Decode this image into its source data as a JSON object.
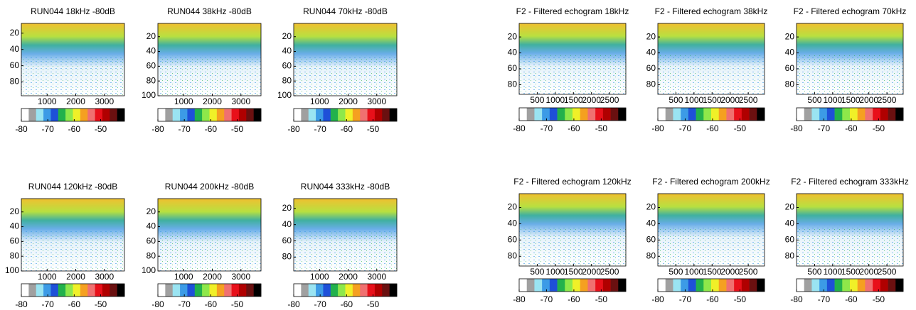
{
  "colormap": [
    "#ffffff",
    "#a0a0a0",
    "#9ae4f2",
    "#3c9be6",
    "#1e50d8",
    "#22b14c",
    "#8ee84a",
    "#f0f028",
    "#f5a020",
    "#f07070",
    "#e8101a",
    "#b00000",
    "#6a1010",
    "#000000"
  ],
  "chart_data": [
    {
      "type": "echogram",
      "title": "RUN044 18kHz -80dB",
      "xlim": [
        100,
        3700
      ],
      "xticks": [
        1000,
        2000,
        3000
      ],
      "ylim": [
        8,
        97
      ],
      "yticks": [
        20,
        40,
        60,
        80
      ],
      "y_inverted": true,
      "clim": [
        -80,
        -41
      ],
      "cticks": [
        -80,
        -70,
        -60,
        -50
      ]
    },
    {
      "type": "echogram",
      "title": "RUN044 38kHz -80dB",
      "xlim": [
        100,
        3700
      ],
      "xticks": [
        1000,
        2000,
        3000
      ],
      "ylim": [
        2,
        100
      ],
      "yticks": [
        20,
        40,
        60,
        80,
        100
      ],
      "y_inverted": true,
      "clim": [
        -80,
        -41
      ],
      "cticks": [
        -80,
        -70,
        -60,
        -50
      ]
    },
    {
      "type": "echogram",
      "title": "RUN044 70kHz -80dB",
      "xlim": [
        100,
        3700
      ],
      "xticks": [
        1000,
        2000,
        3000
      ],
      "ylim": [
        2,
        100
      ],
      "yticks": [
        20,
        40,
        60,
        80,
        100
      ],
      "y_inverted": true,
      "clim": [
        -80,
        -41
      ],
      "cticks": [
        -80,
        -70,
        -60,
        -50
      ]
    },
    {
      "type": "echogram",
      "title": "F2 - Filtered echogram 18kHz",
      "xlim": [
        0,
        2950
      ],
      "xticks": [
        500,
        1000,
        1500,
        2000,
        2500
      ],
      "ylim": [
        3,
        92
      ],
      "yticks": [
        20,
        40,
        60,
        80
      ],
      "y_inverted": true,
      "clim": [
        -80,
        -41
      ],
      "cticks": [
        -80,
        -70,
        -60,
        -50
      ]
    },
    {
      "type": "echogram",
      "title": "F2 - Filtered echogram 38kHz",
      "xlim": [
        0,
        2950
      ],
      "xticks": [
        500,
        1000,
        1500,
        2000,
        2500
      ],
      "ylim": [
        3,
        92
      ],
      "yticks": [
        20,
        40,
        60,
        80
      ],
      "y_inverted": true,
      "clim": [
        -80,
        -41
      ],
      "cticks": [
        -80,
        -70,
        -60,
        -50
      ]
    },
    {
      "type": "echogram",
      "title": "F2 - Filtered echogram 70kHz",
      "xlim": [
        0,
        2950
      ],
      "xticks": [
        500,
        1000,
        1500,
        2000,
        2500
      ],
      "ylim": [
        3,
        92
      ],
      "yticks": [
        20,
        40,
        60,
        80
      ],
      "y_inverted": true,
      "clim": [
        -80,
        -41
      ],
      "cticks": [
        -80,
        -70,
        -60,
        -50
      ]
    },
    {
      "type": "echogram",
      "title": "RUN044 120kHz -80dB",
      "xlim": [
        100,
        3700
      ],
      "xticks": [
        1000,
        2000,
        3000
      ],
      "ylim": [
        2,
        100
      ],
      "yticks": [
        20,
        40,
        60,
        80,
        100
      ],
      "y_inverted": true,
      "clim": [
        -80,
        -41
      ],
      "cticks": [
        -80,
        -70,
        -60,
        -50
      ]
    },
    {
      "type": "echogram",
      "title": "RUN044 200kHz -80dB",
      "xlim": [
        100,
        3700
      ],
      "xticks": [
        1000,
        2000,
        3000
      ],
      "ylim": [
        2,
        100
      ],
      "yticks": [
        20,
        40,
        60,
        80,
        100
      ],
      "y_inverted": true,
      "clim": [
        -80,
        -41
      ],
      "cticks": [
        -80,
        -70,
        -60,
        -50
      ]
    },
    {
      "type": "echogram",
      "title": "RUN044 333kHz -80dB",
      "xlim": [
        100,
        3700
      ],
      "xticks": [
        1000,
        2000,
        3000
      ],
      "ylim": [
        8,
        97
      ],
      "yticks": [
        20,
        40,
        60,
        80
      ],
      "y_inverted": true,
      "clim": [
        -80,
        -41
      ],
      "cticks": [
        -80,
        -70,
        -60,
        -50
      ]
    },
    {
      "type": "echogram",
      "title": "F2 - Filtered echogram 120kHz",
      "xlim": [
        0,
        2950
      ],
      "xticks": [
        500,
        1000,
        1500,
        2000,
        2500
      ],
      "ylim": [
        3,
        92
      ],
      "yticks": [
        20,
        40,
        60,
        80
      ],
      "y_inverted": true,
      "clim": [
        -80,
        -41
      ],
      "cticks": [
        -80,
        -70,
        -60,
        -50
      ]
    },
    {
      "type": "echogram",
      "title": "F2 - Filtered echogram 200kHz",
      "xlim": [
        0,
        2950
      ],
      "xticks": [
        500,
        1000,
        1500,
        2000,
        2500
      ],
      "ylim": [
        3,
        92
      ],
      "yticks": [
        20,
        40,
        60,
        80
      ],
      "y_inverted": true,
      "clim": [
        -80,
        -41
      ],
      "cticks": [
        -80,
        -70,
        -60,
        -50
      ]
    },
    {
      "type": "echogram",
      "title": "F2 - Filtered echogram 333kHz",
      "xlim": [
        0,
        2950
      ],
      "xticks": [
        500,
        1000,
        1500,
        2000,
        2500
      ],
      "ylim": [
        3,
        92
      ],
      "yticks": [
        20,
        40,
        60,
        80
      ],
      "y_inverted": true,
      "clim": [
        -80,
        -41
      ],
      "cticks": [
        -80,
        -70,
        -60,
        -50
      ]
    }
  ]
}
